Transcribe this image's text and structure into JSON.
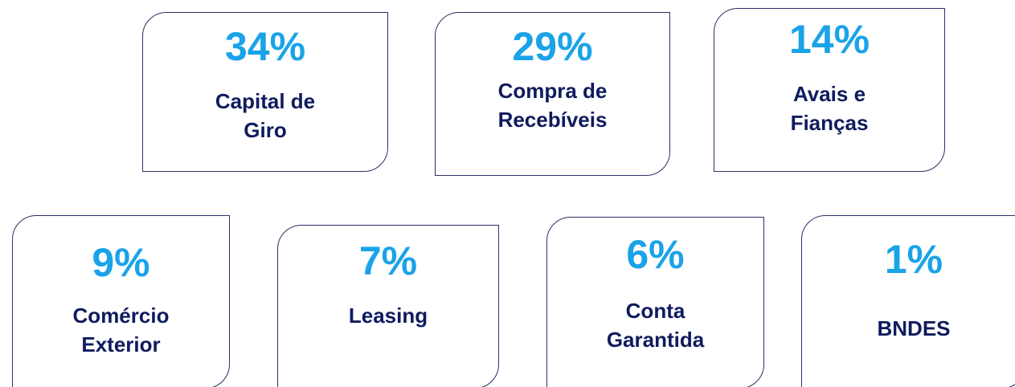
{
  "cards": [
    {
      "value": "34%",
      "label": "Capital de\nGiro"
    },
    {
      "value": "29%",
      "label": "Compra de\nRecebíveis"
    },
    {
      "value": "14%",
      "label": "Avais e\nFianças"
    },
    {
      "value": "9%",
      "label": "Comércio\nExterior"
    },
    {
      "value": "7%",
      "label": "Leasing"
    },
    {
      "value": "6%",
      "label": "Conta\nGarantida"
    },
    {
      "value": "1%",
      "label": "BNDES"
    }
  ]
}
